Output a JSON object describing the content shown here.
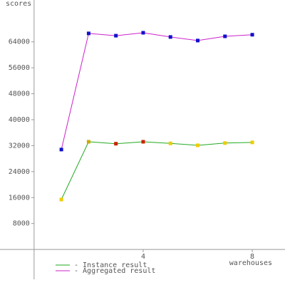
{
  "chart_data": {
    "type": "line",
    "y_label": "scores",
    "x_label": "warehouses",
    "x": [
      1,
      2,
      3,
      4,
      5,
      6,
      7,
      8
    ],
    "series": [
      {
        "name": "- Instance result",
        "color": "#22aa22",
        "marker_colors": [
          "#eecc00",
          "#ccaa00",
          "#cc2200",
          "#cc2200",
          "#eecc00",
          "#eecc00",
          "#eecc00",
          "#eecc00"
        ],
        "values": [
          15400,
          33200,
          32600,
          33200,
          32700,
          32100,
          32800,
          33000
        ]
      },
      {
        "name": "- Aggregated result",
        "color": "#cc22cc",
        "marker_color": "#1111cc",
        "values": [
          30800,
          66600,
          65900,
          66800,
          65500,
          64400,
          65700,
          66200
        ]
      }
    ],
    "xlim": [
      -1.25,
      9.2
    ],
    "ylim": [
      -9200,
      76900
    ],
    "xticks": [
      4,
      8
    ],
    "yticks": [
      8000,
      16000,
      24000,
      32000,
      40000,
      48000,
      56000,
      64000
    ]
  }
}
